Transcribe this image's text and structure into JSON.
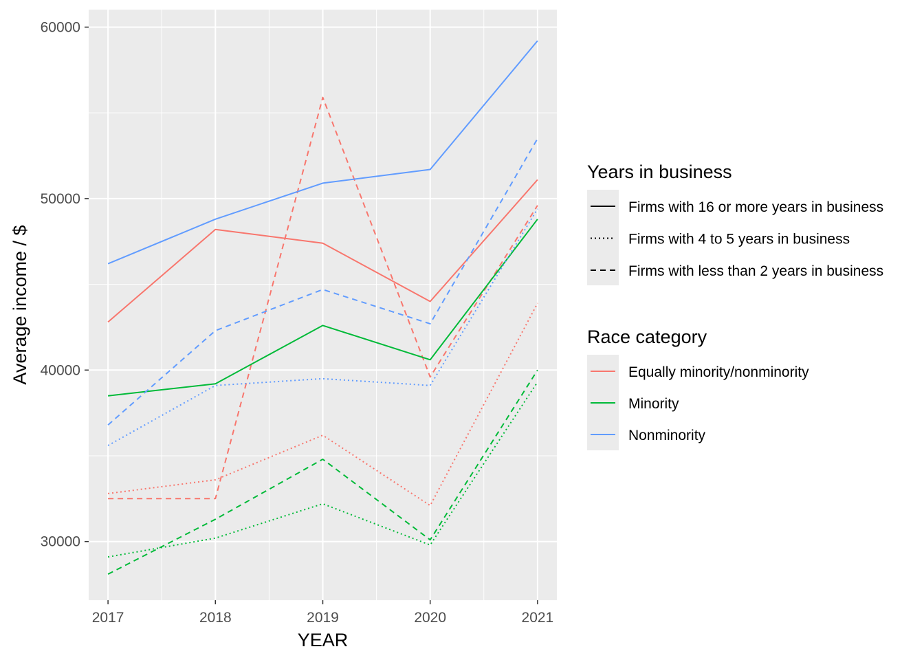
{
  "chart_data": {
    "type": "line",
    "xlabel": "YEAR",
    "ylabel": "Average income / $",
    "x": [
      2017,
      2018,
      2019,
      2020,
      2021
    ],
    "xlim": [
      2016.82,
      2021.18
    ],
    "ylim": [
      26580,
      61020
    ],
    "yticks": [
      30000,
      40000,
      50000,
      60000
    ],
    "grid": true,
    "background": "#ebebeb",
    "grid_color": "#ffffff",
    "legend_position": "right",
    "linetype_legend": {
      "title": "Years in business",
      "entries": [
        {
          "label": "Firms with 16 or more years in business",
          "dash": "solid"
        },
        {
          "label": "Firms with 4 to 5 years in business",
          "dash": "dotted"
        },
        {
          "label": "Firms with less than 2 years in business",
          "dash": "dashed"
        }
      ]
    },
    "color_legend": {
      "title": "Race category",
      "entries": [
        {
          "label": "Equally minority/nonminority",
          "color": "#F8766D"
        },
        {
          "label": "Minority",
          "color": "#00BA38"
        },
        {
          "label": "Nonminority",
          "color": "#619CFF"
        }
      ]
    },
    "series": [
      {
        "race": "Equally minority/nonminority",
        "years_in_business": "Firms with 16 or more years in business",
        "color": "#F8766D",
        "dash": "solid",
        "values": [
          42800,
          48200,
          47400,
          44000,
          51100
        ]
      },
      {
        "race": "Equally minority/nonminority",
        "years_in_business": "Firms with 4 to 5 years in business",
        "color": "#F8766D",
        "dash": "dotted",
        "values": [
          32800,
          33600,
          36200,
          32100,
          43900
        ]
      },
      {
        "race": "Equally minority/nonminority",
        "years_in_business": "Firms with less than 2 years in business",
        "color": "#F8766D",
        "dash": "dashed",
        "values": [
          32500,
          32500,
          55900,
          39600,
          49600
        ]
      },
      {
        "race": "Minority",
        "years_in_business": "Firms with 16 or more years in business",
        "color": "#00BA38",
        "dash": "solid",
        "values": [
          38500,
          39200,
          42600,
          40600,
          48800
        ]
      },
      {
        "race": "Minority",
        "years_in_business": "Firms with 4 to 5 years in business",
        "color": "#00BA38",
        "dash": "dotted",
        "values": [
          29100,
          30200,
          32200,
          29800,
          39300
        ]
      },
      {
        "race": "Minority",
        "years_in_business": "Firms with less than 2 years in business",
        "color": "#00BA38",
        "dash": "dashed",
        "values": [
          28100,
          31300,
          34800,
          30100,
          40000
        ]
      },
      {
        "race": "Nonminority",
        "years_in_business": "Firms with 16 or more years in business",
        "color": "#619CFF",
        "dash": "solid",
        "values": [
          46200,
          48800,
          50900,
          51700,
          59200
        ]
      },
      {
        "race": "Nonminority",
        "years_in_business": "Firms with 4 to 5 years in business",
        "color": "#619CFF",
        "dash": "dotted",
        "values": [
          35600,
          39100,
          39500,
          39100,
          49400
        ]
      },
      {
        "race": "Nonminority",
        "years_in_business": "Firms with less than 2 years in business",
        "color": "#619CFF",
        "dash": "dashed",
        "values": [
          36800,
          42300,
          44700,
          42700,
          53500
        ]
      }
    ]
  }
}
